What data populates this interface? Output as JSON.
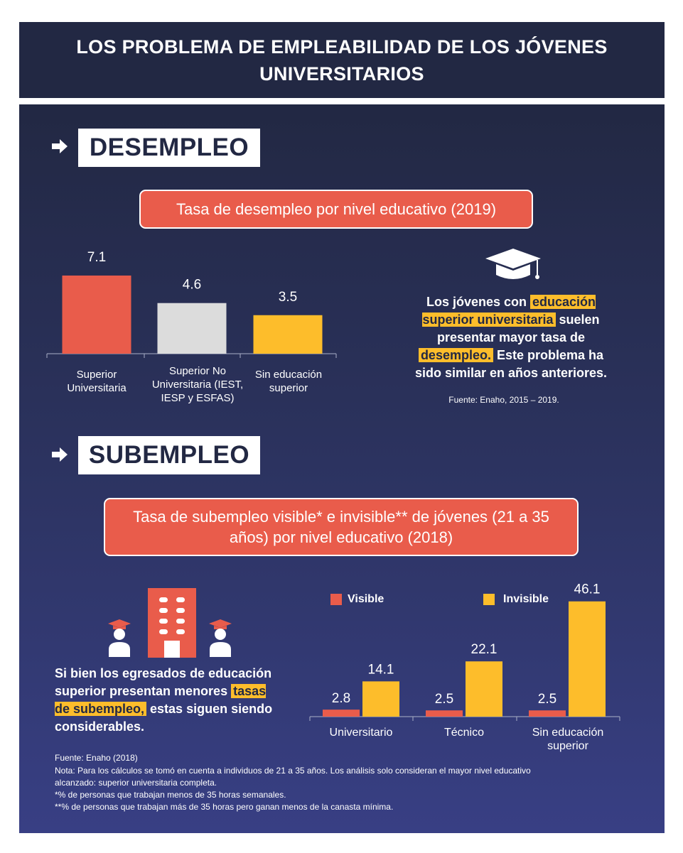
{
  "title": "LOS PROBLEMA DE EMPLEABILIDAD DE LOS JÓVENES UNIVERSITARIOS",
  "colors": {
    "dark": "#222843",
    "red": "#e95c4b",
    "gray": "#dcdcdc",
    "yellow": "#fdbd2b"
  },
  "desempleo": {
    "section_label": "DESEMPLEO",
    "chart_title": "Tasa de desempleo por nivel educativo (2019)",
    "paragraph": {
      "p1": "Los jóvenes con ",
      "hl1": "educación superior universitaria",
      "p2": " suelen presentar mayor tasa de ",
      "hl2": "desempleo.",
      "p3": " Este problema ha sido similar en años anteriores."
    },
    "source": "Fuente: Enaho, 2015 – 2019."
  },
  "subempleo": {
    "section_label": "SUBEMPLEO",
    "chart_title": "Tasa de subempleo visible* e invisible** de jóvenes (21 a 35 años) por nivel educativo (2018)",
    "paragraph": {
      "p1": "Si bien los egresados de educación superior presentan menores ",
      "hl1": "tasas de subempleo,",
      "p2": " estas siguen siendo considerables."
    }
  },
  "footer": {
    "source": "Fuente: Enaho (2018)",
    "notes": [
      "Nota: Para los cálculos se tomó en cuenta a individuos de 21 a 35 años. Los análisis solo consideran el mayor nivel educativo",
      "alcanzado: superior universitaria completa.",
      "*% de personas que trabajan menos de 35 horas semanales.",
      "**% de personas que trabajan más de 35 horas pero ganan menos de la canasta mínima."
    ]
  },
  "icons": [
    "arrow-right-icon",
    "graduation-cap-icon",
    "building-icon",
    "graduate-person-icon"
  ],
  "chart_data": [
    {
      "type": "bar",
      "title": "Tasa de desempleo por nivel educativo (2019)",
      "categories": [
        "Superior Universitaria",
        "Superior No Universitaria (IEST, IESP y ESFAS)",
        "Sin educación superior"
      ],
      "values": [
        7.1,
        4.6,
        3.5
      ],
      "value_labels": [
        "7.1",
        "4.6",
        "3.5"
      ],
      "bar_colors": [
        "#e95c4b",
        "#dcdcdc",
        "#fdbd2b"
      ],
      "ylim": [
        0,
        8
      ],
      "grid": false
    },
    {
      "type": "bar",
      "title": "Tasa de subempleo visible* e invisible** de jóvenes (21 a 35 años) por nivel educativo (2018)",
      "categories": [
        "Universitario",
        "Técnico",
        "Sin educación superior"
      ],
      "series": [
        {
          "name": "Visible",
          "values": [
            2.8,
            2.5,
            2.5
          ],
          "value_labels": [
            "2.8",
            "2.5",
            "2.5"
          ],
          "color": "#e95c4b"
        },
        {
          "name": "Invisible",
          "values": [
            14.1,
            22.1,
            46.1
          ],
          "value_labels": [
            "14.1",
            "22.1",
            "46.1"
          ],
          "color": "#fdbd2b"
        }
      ],
      "ylim": [
        0,
        50
      ],
      "legend": "top",
      "grid": false
    }
  ]
}
